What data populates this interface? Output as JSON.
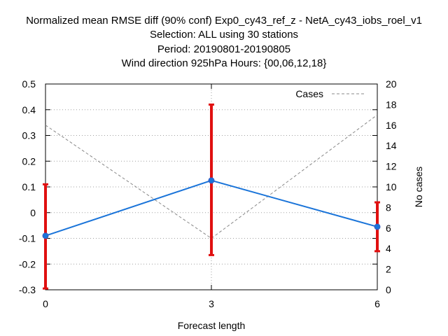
{
  "chart_data": {
    "type": "line",
    "title_lines": [
      "Normalized mean RMSE diff (90% conf) Exp0_cy43_ref_z - NetA_cy43_iobs_roel_v1",
      "Selection: ALL using    30 stations",
      "Period: 20190801-20190805",
      "Wind direction 925hPa   Hours: {00,06,12,18}"
    ],
    "xlabel": "Forecast length",
    "ylabel": "",
    "y2label": "No cases",
    "x": [
      0,
      3,
      6
    ],
    "xlim": [
      0,
      6
    ],
    "ylim": [
      -0.3,
      0.5
    ],
    "y2lim": [
      0,
      20
    ],
    "x_ticks": [
      0,
      3,
      6
    ],
    "y_ticks": [
      -0.3,
      -0.2,
      -0.1,
      0,
      0.1,
      0.2,
      0.3,
      0.4,
      0.5
    ],
    "y_tick_labels": [
      "-0.3",
      "-0.2",
      "-0.1",
      "0",
      "0.1",
      "0.2",
      "0.3",
      "0.4",
      "0.5"
    ],
    "y2_ticks": [
      0,
      2,
      4,
      6,
      8,
      10,
      12,
      14,
      16,
      18,
      20
    ],
    "grid": true,
    "legend_position": "top-right",
    "series": [
      {
        "style": "line-with-errorbars",
        "color": "#1a74d9",
        "axis": "y",
        "values": [
          -0.09,
          0.125,
          -0.055
        ],
        "error_low": [
          -0.295,
          -0.165,
          -0.15
        ],
        "error_high": [
          0.11,
          0.42,
          0.04
        ],
        "errorbar_color": "#e01010"
      },
      {
        "name": "Cases",
        "style": "dashed",
        "color": "#888888",
        "axis": "y2",
        "values": [
          16,
          5,
          17
        ]
      }
    ]
  }
}
